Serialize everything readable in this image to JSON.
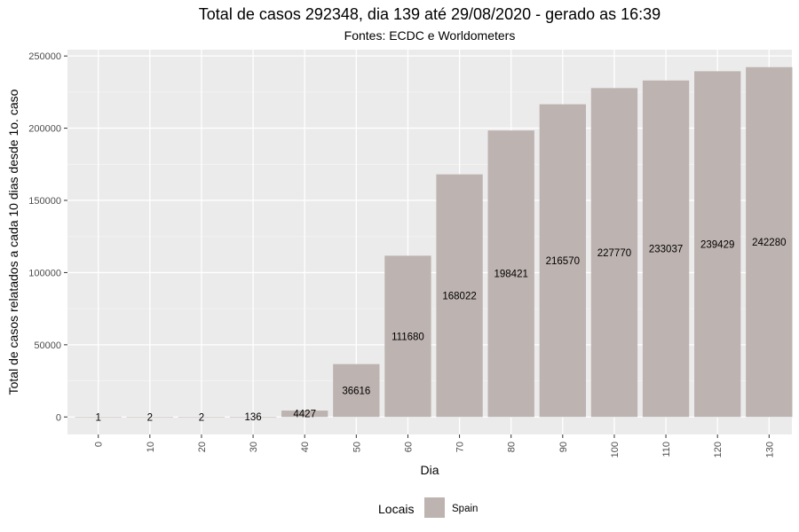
{
  "chart_data": {
    "type": "bar",
    "title": "Total de casos 292348, dia 139 até 29/08/2020 - gerado as 16:39",
    "subtitle": "Fontes: ECDC e Worldometers",
    "xlabel": "Dia",
    "ylabel": "Total de casos relatados a cada 10 dias desde 1o. caso",
    "categories": [
      "0",
      "10",
      "20",
      "30",
      "40",
      "50",
      "60",
      "70",
      "80",
      "90",
      "100",
      "110",
      "120",
      "130"
    ],
    "series": [
      {
        "name": "Spain",
        "values": [
          1,
          2,
          2,
          136,
          4427,
          36616,
          111680,
          168022,
          198421,
          216570,
          227770,
          233037,
          239429,
          242280
        ]
      }
    ],
    "ylim": [
      -12115,
      254395
    ],
    "y_ticks": [
      0,
      50000,
      100000,
      150000,
      200000,
      250000
    ],
    "grid": true,
    "legend": {
      "title": "Locais",
      "position": "bottom"
    },
    "colors": {
      "bar": "#bdb3b0",
      "panel": "#ebebeb",
      "grid_major": "#ffffff",
      "grid_minor": "#f4f4f4"
    }
  }
}
